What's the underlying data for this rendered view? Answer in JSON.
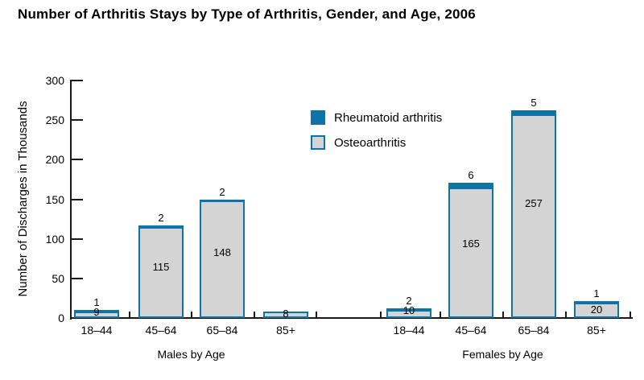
{
  "chart_data": {
    "type": "bar",
    "stacked": true,
    "title": "Number of Arthritis Stays by Type of Arthritis, Gender, and Age, 2006",
    "xlabel": "",
    "ylabel": "Number of Discharges in Thousands",
    "ylim": [
      0,
      300
    ],
    "yticks": [
      0,
      50,
      100,
      150,
      200,
      250,
      300
    ],
    "grid": false,
    "legend_position": "upper-center-inside",
    "legend": [
      {
        "label": "Rheumatoid arthritis"
      },
      {
        "label": "Osteoarthritis"
      }
    ],
    "colors": {
      "rheumatoid": "#0e74a8",
      "osteoarthritis": "#d4d4d4",
      "axis": "#1a1a1a"
    },
    "groups": [
      {
        "label": "Males by Age",
        "categories": [
          "18–44",
          "45–64",
          "65–84",
          "85+"
        ],
        "series": [
          {
            "name": "Rheumatoid arthritis",
            "values": [
              1,
              2,
              2,
              0
            ],
            "labels": [
              "1",
              "2",
              "2",
              ""
            ]
          },
          {
            "name": "Osteoarthritis",
            "values": [
              9,
              115,
              148,
              8
            ],
            "labels": [
              "9",
              "115",
              "148",
              "8"
            ]
          }
        ]
      },
      {
        "label": "Females by Age",
        "categories": [
          "18–44",
          "45–64",
          "65–84",
          "85+"
        ],
        "series": [
          {
            "name": "Rheumatoid arthritis",
            "values": [
              2,
              6,
              5,
              1
            ],
            "labels": [
              "2",
              "6",
              "5",
              "1"
            ]
          },
          {
            "name": "Osteoarthritis",
            "values": [
              10,
              165,
              257,
              20
            ],
            "labels": [
              "10",
              "165",
              "257",
              "20"
            ]
          }
        ]
      }
    ]
  }
}
